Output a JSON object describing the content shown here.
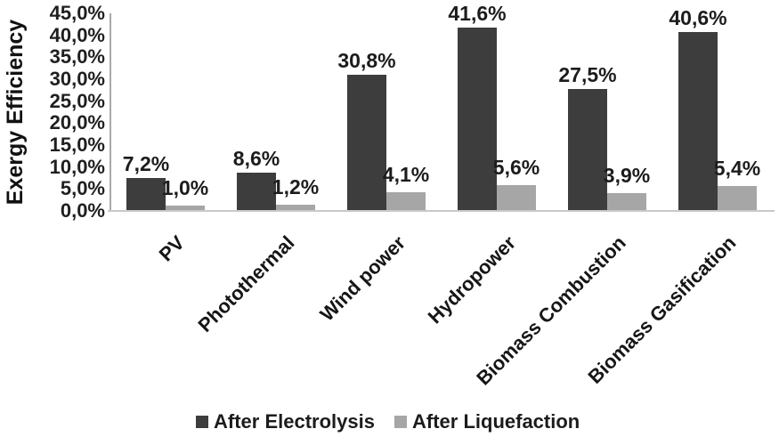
{
  "chart_data": {
    "type": "bar",
    "title": "",
    "xlabel": "",
    "ylabel": "Exergy Efficiency",
    "categories": [
      "PV",
      "Photothermal",
      "Wind power",
      "Hydropower",
      "Biomass Combustion",
      "Biomass Gasification"
    ],
    "series": [
      {
        "name": "After Electrolysis",
        "color": "#3d3d3d",
        "values": [
          7.2,
          8.6,
          30.8,
          41.6,
          27.5,
          40.6
        ],
        "value_labels": [
          "7,2%",
          "8,6%",
          "30,8%",
          "41,6%",
          "27,5%",
          "40,6%"
        ]
      },
      {
        "name": "After Liquefaction",
        "color": "#a6a6a6",
        "values": [
          1.0,
          1.2,
          4.1,
          5.6,
          3.9,
          5.4
        ],
        "value_labels": [
          "1,0%",
          "1,2%",
          "4,1%",
          "5,6%",
          "3,9%",
          "5,4%"
        ]
      }
    ],
    "y_axis": {
      "min": 0,
      "max": 45,
      "step": 5,
      "tick_labels": [
        "0,0%",
        "5,0%",
        "10,0%",
        "15,0%",
        "20,0%",
        "25,0%",
        "30,0%",
        "35,0%",
        "40,0%",
        "45,0%"
      ]
    },
    "grid": false,
    "legend_position": "bottom",
    "decimal_separator": ","
  },
  "colors": {
    "background": "#ffffff",
    "bar_dark": "#3d3d3d",
    "bar_light": "#a6a6a6",
    "axis_line_vertical": "#a9a9a9",
    "axis_line_horizontal": "#c9c9c9",
    "text": "#1a1a1a"
  }
}
